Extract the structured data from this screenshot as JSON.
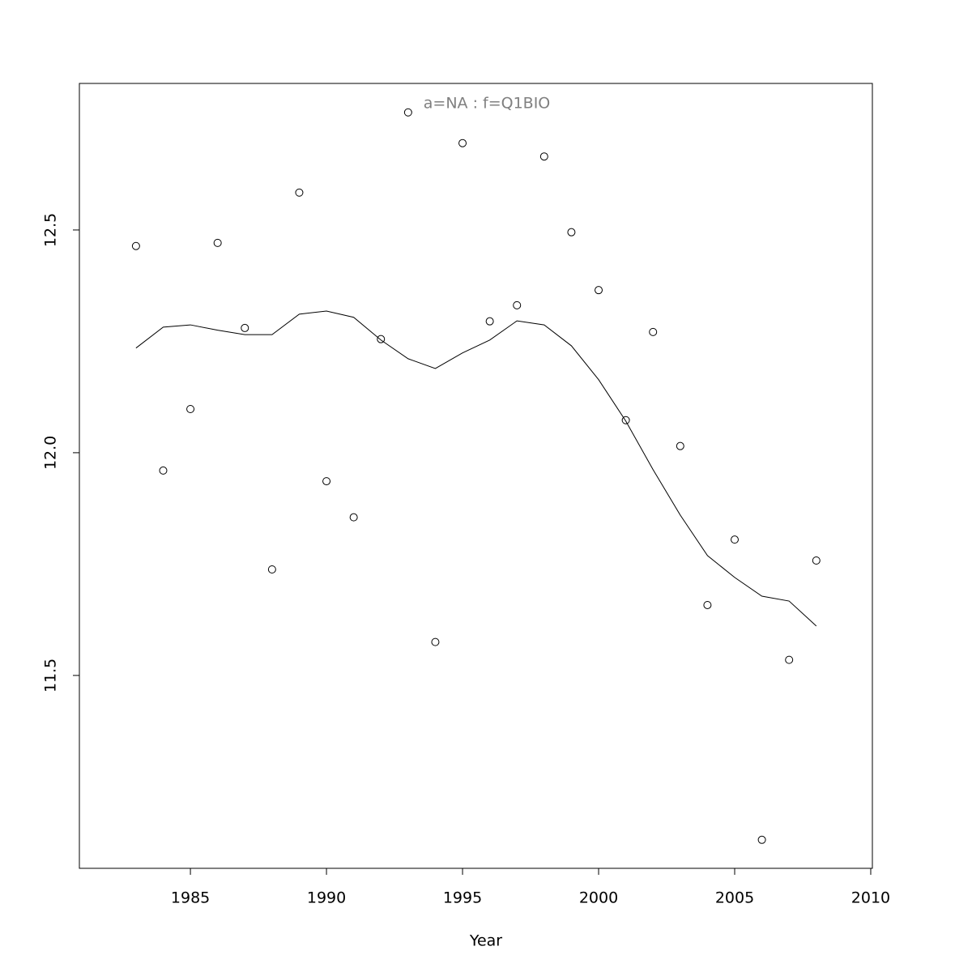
{
  "chart_data": {
    "type": "scatter",
    "title": "a=NA  :  f=Q1BIO",
    "x_label": "Year",
    "x": [
      1983,
      1984,
      1985,
      1986,
      1987,
      1988,
      1989,
      1990,
      1991,
      1992,
      1993,
      1994,
      1995,
      1996,
      1997,
      1998,
      1999,
      2000,
      2001,
      2002,
      2003,
      2004,
      2005,
      2006,
      2007,
      2008
    ],
    "series": [
      {
        "mode": "points",
        "color": "#000000",
        "values": [
          12.464,
          11.96,
          12.098,
          12.471,
          12.28,
          11.738,
          12.584,
          11.936,
          11.855,
          12.255,
          12.764,
          11.575,
          12.695,
          12.295,
          12.331,
          12.665,
          12.495,
          12.365,
          12.073,
          12.271,
          12.015,
          11.658,
          11.805,
          11.131,
          11.535,
          11.758
        ]
      },
      {
        "mode": "line",
        "color": "#000000",
        "values": [
          12.235,
          12.282,
          12.287,
          12.275,
          12.265,
          12.265,
          12.311,
          12.318,
          12.304,
          12.253,
          12.211,
          12.189,
          12.224,
          12.253,
          12.296,
          12.287,
          12.24,
          12.164,
          12.071,
          11.962,
          11.86,
          11.769,
          11.72,
          11.678,
          11.667,
          11.611
        ]
      }
    ],
    "xlim": [
      1980.92,
      2010.06
    ],
    "xticks": [
      1985,
      1990,
      1995,
      2000,
      2005,
      2010
    ],
    "ylim": [
      11.067,
      12.829
    ],
    "yticks": [
      11.5,
      {
        "value": 12,
        "label": "12.0"
      },
      12.5
    ],
    "title_color": "#808080"
  }
}
